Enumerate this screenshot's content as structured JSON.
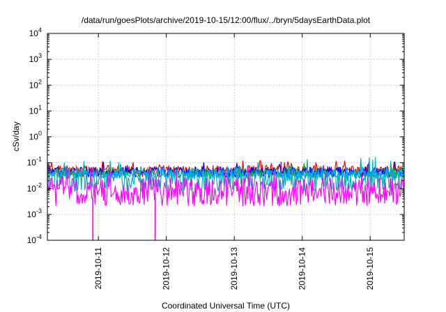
{
  "chart_data": {
    "type": "line",
    "title": "/data/run/goesPlots/archive/2019-10-15/12:00/flux/../bryn/5daysEarthData.plot",
    "xlabel": "Coordinated Universal Time (UTC)",
    "ylabel": "cSv/day",
    "y_scale": "log",
    "ylim": [
      0.0001,
      10000
    ],
    "y_ticks": [
      {
        "value": 0.0001,
        "base": "10",
        "exp": "-4"
      },
      {
        "value": 0.001,
        "base": "10",
        "exp": "-3"
      },
      {
        "value": 0.01,
        "base": "10",
        "exp": "-2"
      },
      {
        "value": 0.1,
        "base": "10",
        "exp": "-1"
      },
      {
        "value": 1,
        "base": "10",
        "exp": "0"
      },
      {
        "value": 10,
        "base": "10",
        "exp": "1"
      },
      {
        "value": 100,
        "base": "10",
        "exp": "2"
      },
      {
        "value": 1000,
        "base": "10",
        "exp": "3"
      },
      {
        "value": 10000,
        "base": "10",
        "exp": "4"
      }
    ],
    "xlim": [
      "2019-10-10T06:00",
      "2019-10-15T12:00"
    ],
    "x_ticks": [
      {
        "value": "2019-10-11T00:00",
        "label": "2019-10-11"
      },
      {
        "value": "2019-10-12T00:00",
        "label": "2019-10-12"
      },
      {
        "value": "2019-10-13T00:00",
        "label": "2019-10-13"
      },
      {
        "value": "2019-10-14T00:00",
        "label": "2019-10-14"
      },
      {
        "value": "2019-10-15T00:00",
        "label": "2019-10-15"
      }
    ],
    "grid": true,
    "series": [
      {
        "color": "#ff0000",
        "base": 0.048,
        "spread": 0.22,
        "seed": 11
      },
      {
        "color": "#00c000",
        "base": 0.04,
        "spread": 0.2,
        "seed": 23
      },
      {
        "color": "#0000ff",
        "base": 0.044,
        "spread": 0.2,
        "seed": 37
      },
      {
        "color": "#00b0b0",
        "base": 0.022,
        "spread": 0.45,
        "seed": 53
      },
      {
        "color": "#00a8ff",
        "base": 0.036,
        "spread": 0.16,
        "seed": 71
      },
      {
        "color": "#ff00ff",
        "base": 0.0075,
        "spread": 0.55,
        "seed": 97,
        "dropouts": [
          "2019-10-10T22:00",
          "2019-10-11T20:00"
        ]
      }
    ]
  }
}
